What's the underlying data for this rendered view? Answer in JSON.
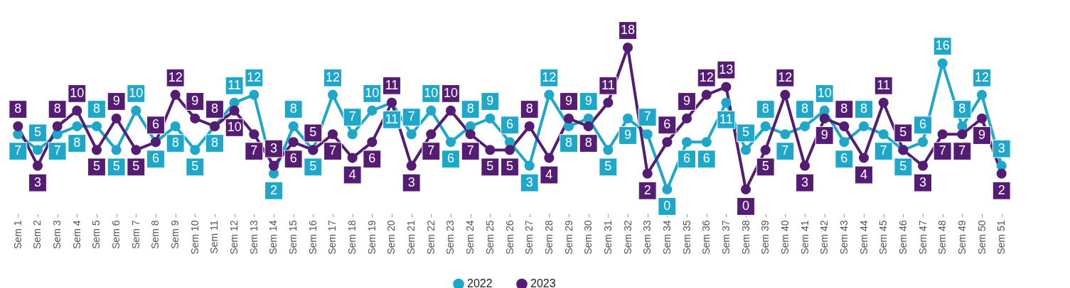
{
  "chart_data": {
    "type": "line",
    "categories": [
      "Sem 1",
      "Sem 2",
      "Sem 3",
      "Sem 4",
      "Sem 5",
      "Sem 6",
      "Sem 7",
      "Sem 8",
      "Sem 9",
      "Sem 10",
      "Sem 11",
      "Sem 12",
      "Sem 13",
      "Sem 14",
      "Sem 15",
      "Sem 16",
      "Sem 17",
      "Sem 18",
      "Sem 19",
      "Sem 20",
      "Sem 21",
      "Sem 22",
      "Sem 23",
      "Sem 24",
      "Sem 25",
      "Sem 26",
      "Sem 27",
      "Sem 28",
      "Sem 29",
      "Sem 30",
      "Sem 31",
      "Sem 32",
      "Sem 33",
      "Sem 34",
      "Sem 35",
      "Sem 36",
      "Sem 37",
      "Sem 38",
      "Sem 39",
      "Sem 40",
      "Sem 41",
      "Sem 42",
      "Sem 43",
      "Sem 44",
      "Sem 45",
      "Sem 46",
      "Sem 47",
      "Sem 48",
      "Sem 49",
      "Sem 50",
      "Sem 51"
    ],
    "series": [
      {
        "name": "2022",
        "color": "#1fa7c9",
        "values": [
          7,
          5,
          7,
          8,
          8,
          5,
          10,
          6,
          8,
          5,
          8,
          11,
          12,
          2,
          8,
          5,
          12,
          7,
          10,
          11,
          7,
          10,
          6,
          8,
          9,
          6,
          3,
          12,
          8,
          9,
          5,
          9,
          7,
          0,
          6,
          6,
          11,
          5,
          8,
          7,
          8,
          10,
          6,
          8,
          7,
          5,
          6,
          16,
          8,
          12,
          3
        ]
      },
      {
        "name": "2023",
        "color": "#541d73",
        "values": [
          8,
          3,
          8,
          10,
          5,
          9,
          5,
          6,
          12,
          9,
          8,
          10,
          7,
          3,
          6,
          5,
          7,
          4,
          6,
          11,
          3,
          7,
          10,
          7,
          5,
          5,
          8,
          4,
          9,
          8,
          11,
          18,
          2,
          6,
          9,
          12,
          13,
          0,
          5,
          12,
          3,
          9,
          8,
          4,
          11,
          5,
          3,
          7,
          7,
          9,
          2
        ]
      }
    ],
    "data_labels": true,
    "marker": "circle",
    "line_style": "solid",
    "grid": false,
    "legend": "bottom"
  }
}
